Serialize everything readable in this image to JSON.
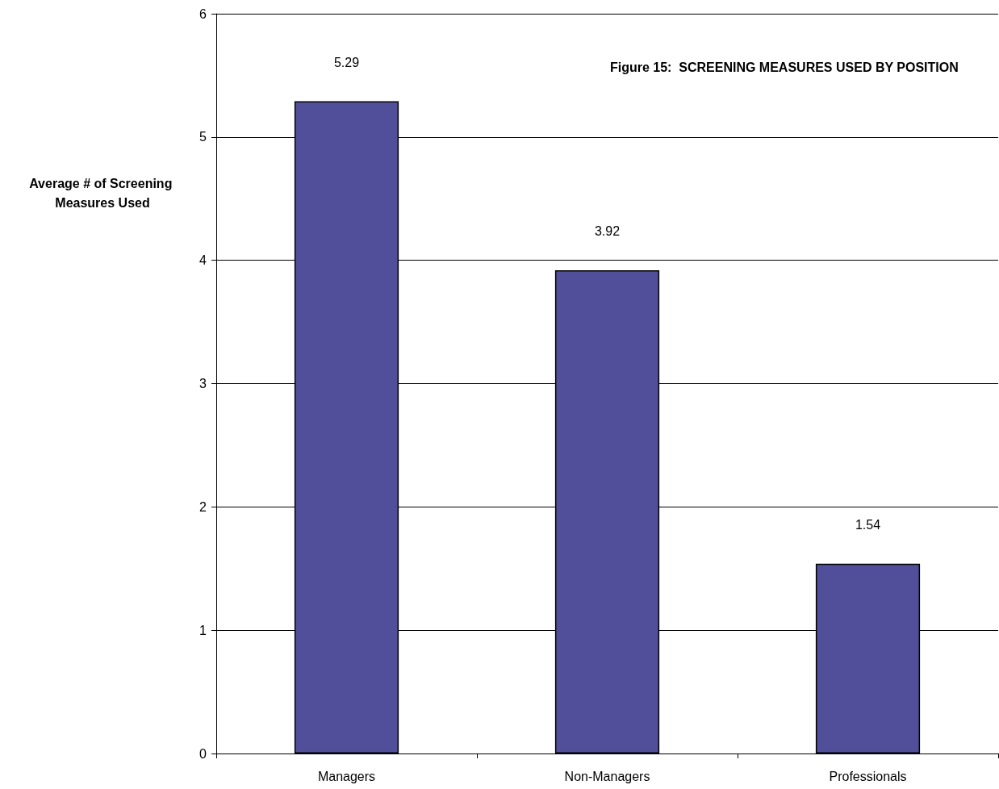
{
  "chart_data": {
    "type": "bar",
    "title": "Figure 15:  SCREENING MEASURES USED BY POSITION",
    "ylabel": "Average # of Screening Measures Used",
    "categories": [
      "Managers",
      "Non-Managers",
      "Professionals"
    ],
    "values": [
      5.29,
      3.92,
      1.54
    ],
    "color": "#524f9a",
    "ylim": [
      0,
      6
    ],
    "yticks": [
      0,
      1,
      2,
      3,
      4,
      5,
      6
    ],
    "grid": "y",
    "data_labels": true
  }
}
